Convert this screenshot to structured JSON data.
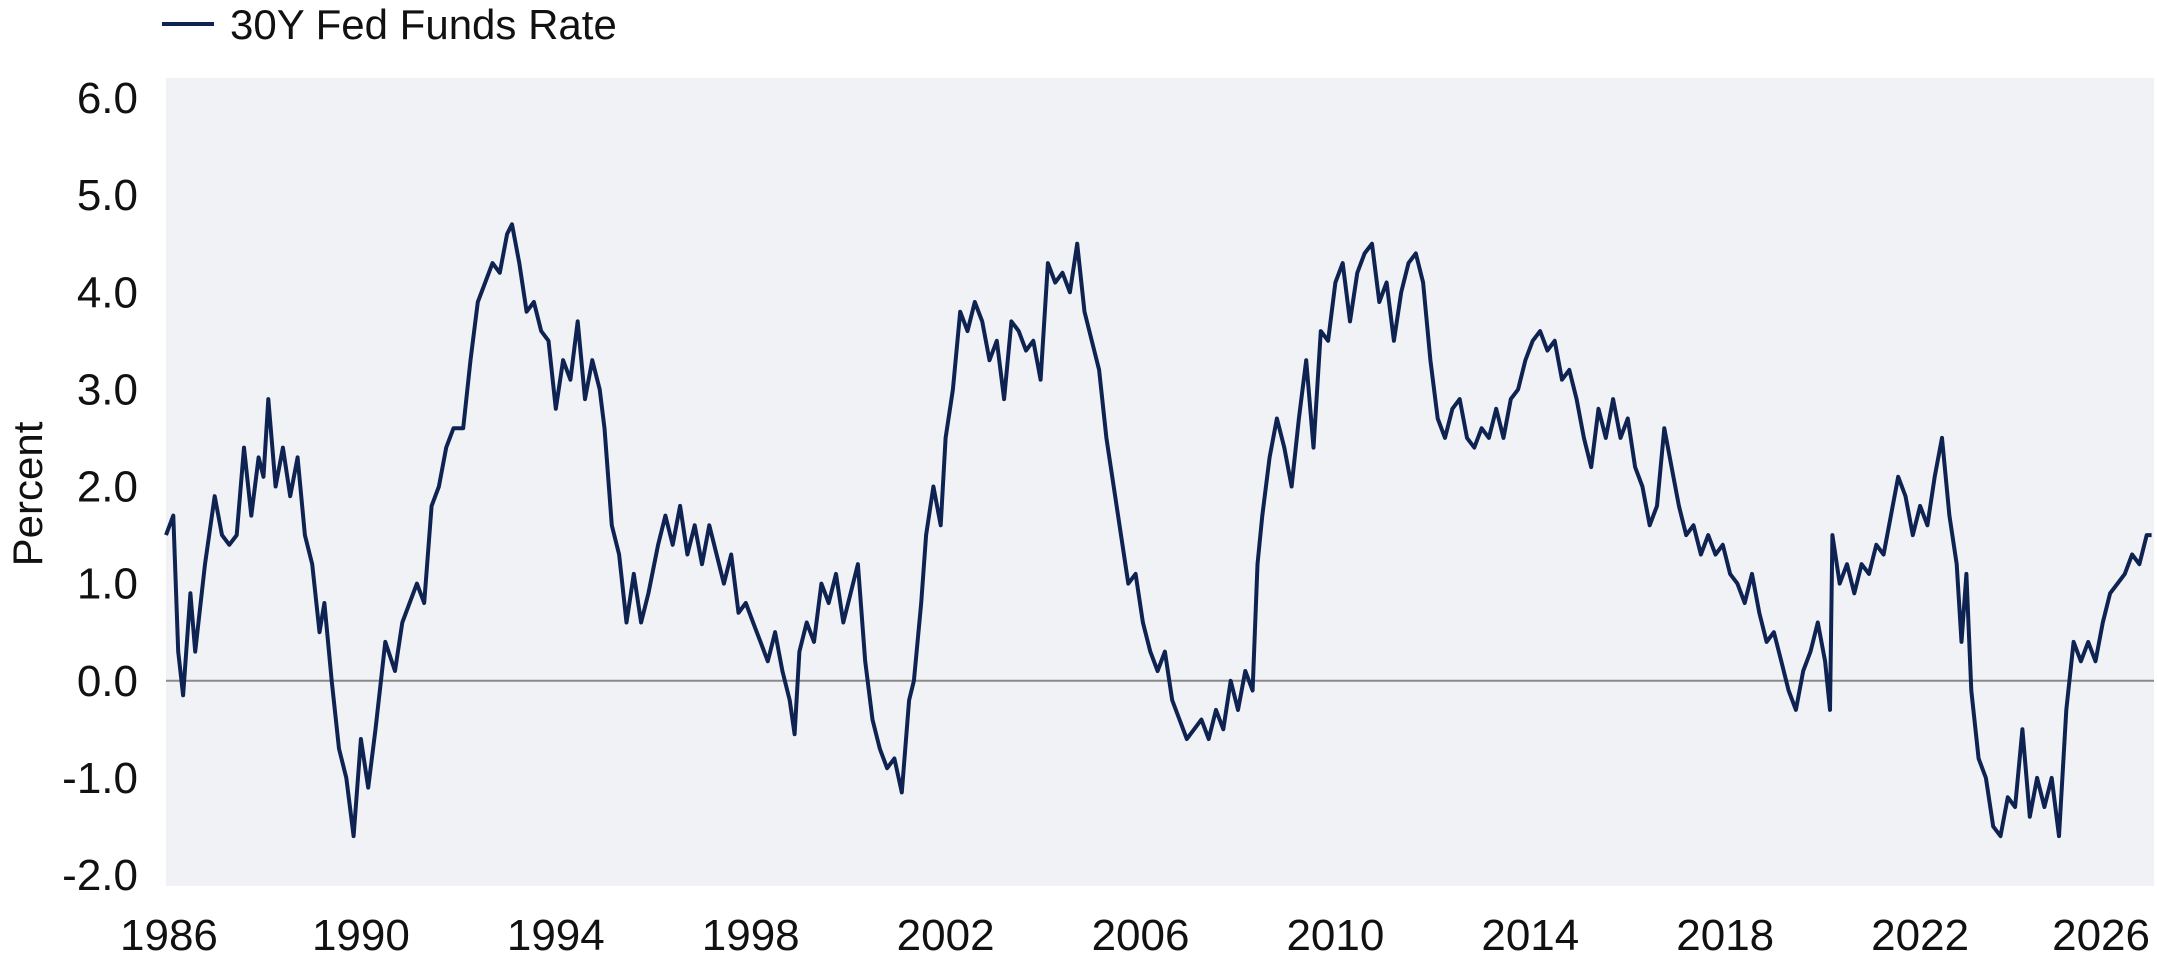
{
  "chart_data": {
    "type": "line",
    "title": "",
    "xlabel": "",
    "ylabel": "Percent",
    "xlim": [
      1986,
      2026.8
    ],
    "ylim": [
      -2.0,
      6.0
    ],
    "x_ticks": [
      "1986",
      "1990",
      "1994",
      "1998",
      "2002",
      "2006",
      "2010",
      "2014",
      "2018",
      "2022",
      "2026"
    ],
    "y_ticks": [
      "6.0",
      "5.0",
      "4.0",
      "3.0",
      "2.0",
      "1.0",
      "0.0",
      "-1.0",
      "-2.0"
    ],
    "zero_line": true,
    "grid": false,
    "legend_position": "top-left",
    "series": [
      {
        "name": "30Y Fed Funds Rate",
        "color": "#0f2353",
        "points": [
          [
            1986.0,
            1.5
          ],
          [
            1986.15,
            1.7
          ],
          [
            1986.25,
            0.3
          ],
          [
            1986.35,
            -0.15
          ],
          [
            1986.5,
            0.9
          ],
          [
            1986.6,
            0.3
          ],
          [
            1986.8,
            1.2
          ],
          [
            1987.0,
            1.9
          ],
          [
            1987.15,
            1.5
          ],
          [
            1987.3,
            1.4
          ],
          [
            1987.45,
            1.5
          ],
          [
            1987.6,
            2.4
          ],
          [
            1987.75,
            1.7
          ],
          [
            1987.9,
            2.3
          ],
          [
            1988.0,
            2.1
          ],
          [
            1988.1,
            2.9
          ],
          [
            1988.25,
            2.0
          ],
          [
            1988.4,
            2.4
          ],
          [
            1988.55,
            1.9
          ],
          [
            1988.7,
            2.3
          ],
          [
            1988.85,
            1.5
          ],
          [
            1989.0,
            1.2
          ],
          [
            1989.15,
            0.5
          ],
          [
            1989.25,
            0.8
          ],
          [
            1989.4,
            0.0
          ],
          [
            1989.55,
            -0.7
          ],
          [
            1989.7,
            -1.0
          ],
          [
            1989.85,
            -1.6
          ],
          [
            1990.0,
            -0.6
          ],
          [
            1990.15,
            -1.1
          ],
          [
            1990.3,
            -0.5
          ],
          [
            1990.5,
            0.4
          ],
          [
            1990.7,
            0.1
          ],
          [
            1990.85,
            0.6
          ],
          [
            1991.0,
            0.8
          ],
          [
            1991.15,
            1.0
          ],
          [
            1991.3,
            0.8
          ],
          [
            1991.45,
            1.8
          ],
          [
            1991.6,
            2.0
          ],
          [
            1991.75,
            2.4
          ],
          [
            1991.9,
            2.6
          ],
          [
            1992.1,
            2.6
          ],
          [
            1992.25,
            3.3
          ],
          [
            1992.4,
            3.9
          ],
          [
            1992.55,
            4.1
          ],
          [
            1992.7,
            4.3
          ],
          [
            1992.85,
            4.2
          ],
          [
            1993.0,
            4.6
          ],
          [
            1993.1,
            4.7
          ],
          [
            1993.25,
            4.3
          ],
          [
            1993.4,
            3.8
          ],
          [
            1993.55,
            3.9
          ],
          [
            1993.7,
            3.6
          ],
          [
            1993.85,
            3.5
          ],
          [
            1994.0,
            2.8
          ],
          [
            1994.15,
            3.3
          ],
          [
            1994.3,
            3.1
          ],
          [
            1994.45,
            3.7
          ],
          [
            1994.6,
            2.9
          ],
          [
            1994.75,
            3.3
          ],
          [
            1994.9,
            3.0
          ],
          [
            1995.0,
            2.6
          ],
          [
            1995.15,
            1.6
          ],
          [
            1995.3,
            1.3
          ],
          [
            1995.45,
            0.6
          ],
          [
            1995.6,
            1.1
          ],
          [
            1995.75,
            0.6
          ],
          [
            1995.9,
            0.9
          ],
          [
            1996.1,
            1.4
          ],
          [
            1996.25,
            1.7
          ],
          [
            1996.4,
            1.4
          ],
          [
            1996.55,
            1.8
          ],
          [
            1996.7,
            1.3
          ],
          [
            1996.85,
            1.6
          ],
          [
            1997.0,
            1.2
          ],
          [
            1997.15,
            1.6
          ],
          [
            1997.3,
            1.3
          ],
          [
            1997.45,
            1.0
          ],
          [
            1997.6,
            1.3
          ],
          [
            1997.75,
            0.7
          ],
          [
            1997.9,
            0.8
          ],
          [
            1998.05,
            0.6
          ],
          [
            1998.2,
            0.4
          ],
          [
            1998.35,
            0.2
          ],
          [
            1998.5,
            0.5
          ],
          [
            1998.65,
            0.1
          ],
          [
            1998.8,
            -0.2
          ],
          [
            1998.9,
            -0.55
          ],
          [
            1999.0,
            0.3
          ],
          [
            1999.15,
            0.6
          ],
          [
            1999.3,
            0.4
          ],
          [
            1999.45,
            1.0
          ],
          [
            1999.6,
            0.8
          ],
          [
            1999.75,
            1.1
          ],
          [
            1999.9,
            0.6
          ],
          [
            2000.05,
            0.9
          ],
          [
            2000.2,
            1.2
          ],
          [
            2000.35,
            0.2
          ],
          [
            2000.5,
            -0.4
          ],
          [
            2000.65,
            -0.7
          ],
          [
            2000.8,
            -0.9
          ],
          [
            2000.95,
            -0.8
          ],
          [
            2001.1,
            -1.15
          ],
          [
            2001.25,
            -0.2
          ],
          [
            2001.35,
            0.0
          ],
          [
            2001.5,
            0.8
          ],
          [
            2001.6,
            1.5
          ],
          [
            2001.75,
            2.0
          ],
          [
            2001.9,
            1.6
          ],
          [
            2002.0,
            2.5
          ],
          [
            2002.15,
            3.0
          ],
          [
            2002.3,
            3.8
          ],
          [
            2002.45,
            3.6
          ],
          [
            2002.6,
            3.9
          ],
          [
            2002.75,
            3.7
          ],
          [
            2002.9,
            3.3
          ],
          [
            2003.05,
            3.5
          ],
          [
            2003.2,
            2.9
          ],
          [
            2003.35,
            3.7
          ],
          [
            2003.5,
            3.6
          ],
          [
            2003.65,
            3.4
          ],
          [
            2003.8,
            3.5
          ],
          [
            2003.95,
            3.1
          ],
          [
            2004.1,
            4.3
          ],
          [
            2004.25,
            4.1
          ],
          [
            2004.4,
            4.2
          ],
          [
            2004.55,
            4.0
          ],
          [
            2004.7,
            4.5
          ],
          [
            2004.85,
            3.8
          ],
          [
            2005.0,
            3.5
          ],
          [
            2005.15,
            3.2
          ],
          [
            2005.3,
            2.5
          ],
          [
            2005.45,
            2.0
          ],
          [
            2005.6,
            1.5
          ],
          [
            2005.75,
            1.0
          ],
          [
            2005.9,
            1.1
          ],
          [
            2006.05,
            0.6
          ],
          [
            2006.2,
            0.3
          ],
          [
            2006.35,
            0.1
          ],
          [
            2006.5,
            0.3
          ],
          [
            2006.65,
            -0.2
          ],
          [
            2006.8,
            -0.4
          ],
          [
            2006.95,
            -0.6
          ],
          [
            2007.1,
            -0.5
          ],
          [
            2007.25,
            -0.4
          ],
          [
            2007.4,
            -0.6
          ],
          [
            2007.55,
            -0.3
          ],
          [
            2007.7,
            -0.5
          ],
          [
            2007.85,
            0.0
          ],
          [
            2008.0,
            -0.3
          ],
          [
            2008.15,
            0.1
          ],
          [
            2008.3,
            -0.1
          ],
          [
            2008.4,
            1.2
          ],
          [
            2008.5,
            1.7
          ],
          [
            2008.65,
            2.3
          ],
          [
            2008.8,
            2.7
          ],
          [
            2008.95,
            2.4
          ],
          [
            2009.1,
            2.0
          ],
          [
            2009.25,
            2.7
          ],
          [
            2009.4,
            3.3
          ],
          [
            2009.55,
            2.4
          ],
          [
            2009.7,
            3.6
          ],
          [
            2009.85,
            3.5
          ],
          [
            2010.0,
            4.1
          ],
          [
            2010.15,
            4.3
          ],
          [
            2010.3,
            3.7
          ],
          [
            2010.45,
            4.2
          ],
          [
            2010.6,
            4.4
          ],
          [
            2010.75,
            4.5
          ],
          [
            2010.9,
            3.9
          ],
          [
            2011.05,
            4.1
          ],
          [
            2011.2,
            3.5
          ],
          [
            2011.35,
            4.0
          ],
          [
            2011.5,
            4.3
          ],
          [
            2011.65,
            4.4
          ],
          [
            2011.8,
            4.1
          ],
          [
            2011.95,
            3.3
          ],
          [
            2012.1,
            2.7
          ],
          [
            2012.25,
            2.5
          ],
          [
            2012.4,
            2.8
          ],
          [
            2012.55,
            2.9
          ],
          [
            2012.7,
            2.5
          ],
          [
            2012.85,
            2.4
          ],
          [
            2013.0,
            2.6
          ],
          [
            2013.15,
            2.5
          ],
          [
            2013.3,
            2.8
          ],
          [
            2013.45,
            2.5
          ],
          [
            2013.6,
            2.9
          ],
          [
            2013.75,
            3.0
          ],
          [
            2013.9,
            3.3
          ],
          [
            2014.05,
            3.5
          ],
          [
            2014.2,
            3.6
          ],
          [
            2014.35,
            3.4
          ],
          [
            2014.5,
            3.5
          ],
          [
            2014.65,
            3.1
          ],
          [
            2014.8,
            3.2
          ],
          [
            2014.95,
            2.9
          ],
          [
            2015.1,
            2.5
          ],
          [
            2015.25,
            2.2
          ],
          [
            2015.4,
            2.8
          ],
          [
            2015.55,
            2.5
          ],
          [
            2015.7,
            2.9
          ],
          [
            2015.85,
            2.5
          ],
          [
            2016.0,
            2.7
          ],
          [
            2016.15,
            2.2
          ],
          [
            2016.3,
            2.0
          ],
          [
            2016.45,
            1.6
          ],
          [
            2016.6,
            1.8
          ],
          [
            2016.75,
            2.6
          ],
          [
            2016.9,
            2.2
          ],
          [
            2017.05,
            1.8
          ],
          [
            2017.2,
            1.5
          ],
          [
            2017.35,
            1.6
          ],
          [
            2017.5,
            1.3
          ],
          [
            2017.65,
            1.5
          ],
          [
            2017.8,
            1.3
          ],
          [
            2017.95,
            1.4
          ],
          [
            2018.1,
            1.1
          ],
          [
            2018.25,
            1.0
          ],
          [
            2018.4,
            0.8
          ],
          [
            2018.55,
            1.1
          ],
          [
            2018.7,
            0.7
          ],
          [
            2018.85,
            0.4
          ],
          [
            2019.0,
            0.5
          ],
          [
            2019.15,
            0.2
          ],
          [
            2019.3,
            -0.1
          ],
          [
            2019.45,
            -0.3
          ],
          [
            2019.6,
            0.1
          ],
          [
            2019.75,
            0.3
          ],
          [
            2019.9,
            0.6
          ],
          [
            2020.05,
            0.2
          ],
          [
            2020.15,
            -0.3
          ],
          [
            2020.2,
            1.5
          ],
          [
            2020.35,
            1.0
          ],
          [
            2020.5,
            1.2
          ],
          [
            2020.65,
            0.9
          ],
          [
            2020.8,
            1.2
          ],
          [
            2020.95,
            1.1
          ],
          [
            2021.1,
            1.4
          ],
          [
            2021.25,
            1.3
          ],
          [
            2021.4,
            1.7
          ],
          [
            2021.55,
            2.1
          ],
          [
            2021.7,
            1.9
          ],
          [
            2021.85,
            1.5
          ],
          [
            2022.0,
            1.8
          ],
          [
            2022.15,
            1.6
          ],
          [
            2022.3,
            2.1
          ],
          [
            2022.45,
            2.5
          ],
          [
            2022.6,
            1.7
          ],
          [
            2022.75,
            1.2
          ],
          [
            2022.85,
            0.4
          ],
          [
            2022.95,
            1.1
          ],
          [
            2023.05,
            -0.1
          ],
          [
            2023.2,
            -0.8
          ],
          [
            2023.35,
            -1.0
          ],
          [
            2023.5,
            -1.5
          ],
          [
            2023.65,
            -1.6
          ],
          [
            2023.8,
            -1.2
          ],
          [
            2023.95,
            -1.3
          ],
          [
            2024.1,
            -0.5
          ],
          [
            2024.25,
            -1.4
          ],
          [
            2024.4,
            -1.0
          ],
          [
            2024.55,
            -1.3
          ],
          [
            2024.7,
            -1.0
          ],
          [
            2024.85,
            -1.6
          ],
          [
            2025.0,
            -0.3
          ],
          [
            2025.15,
            0.4
          ],
          [
            2025.3,
            0.2
          ],
          [
            2025.45,
            0.4
          ],
          [
            2025.6,
            0.2
          ],
          [
            2025.75,
            0.6
          ],
          [
            2025.9,
            0.9
          ],
          [
            2026.05,
            1.0
          ],
          [
            2026.2,
            1.1
          ],
          [
            2026.35,
            1.3
          ],
          [
            2026.5,
            1.2
          ],
          [
            2026.65,
            1.5
          ],
          [
            2026.75,
            1.5
          ]
        ]
      }
    ]
  }
}
